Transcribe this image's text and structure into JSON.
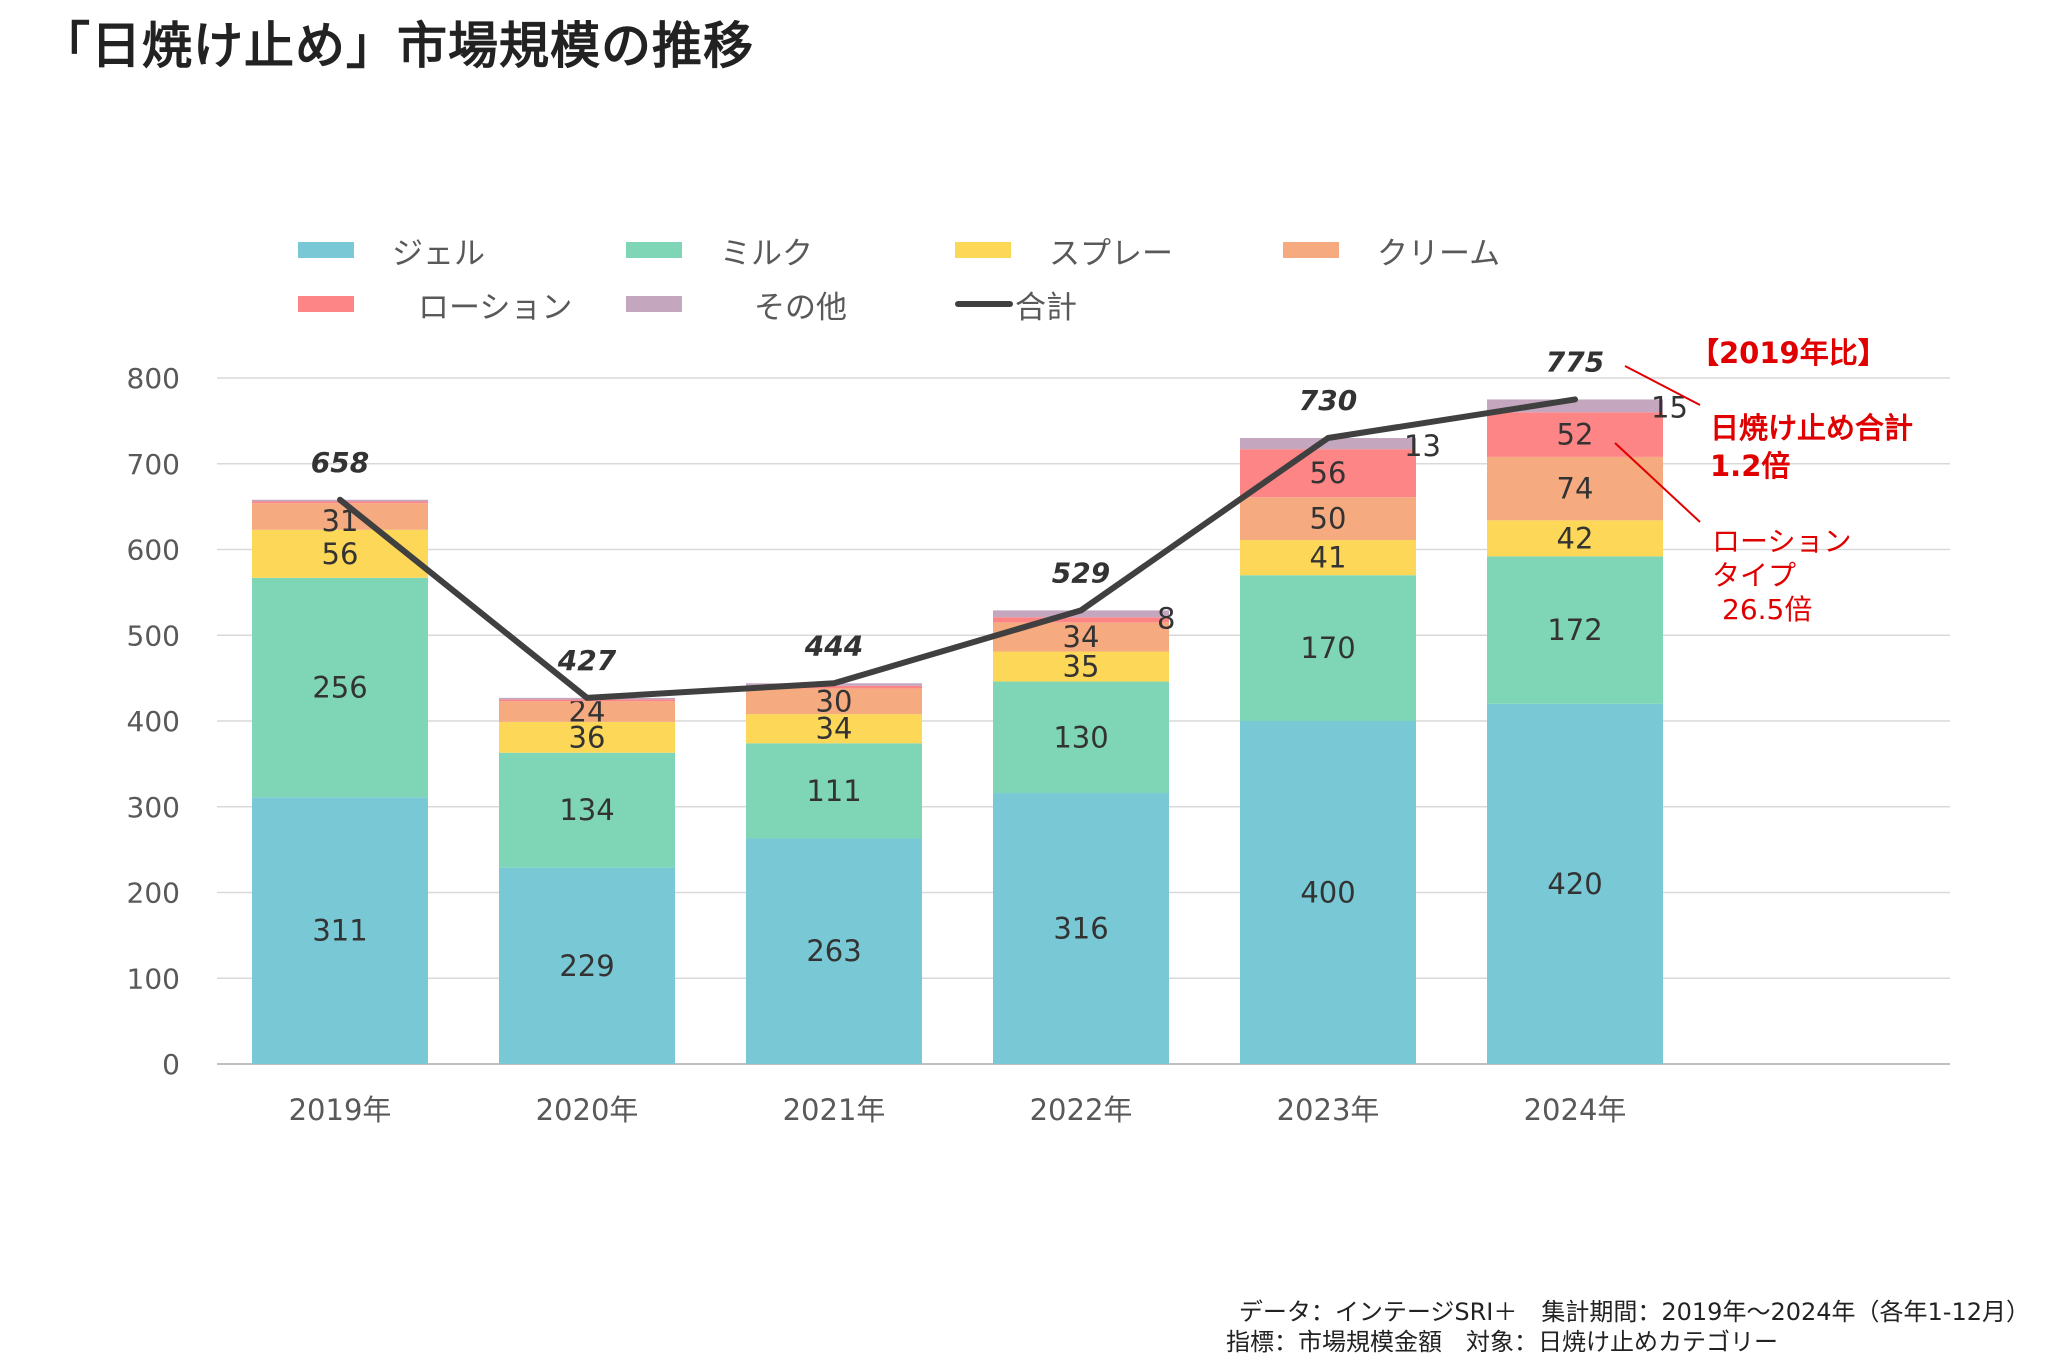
{
  "title": "「日焼け止め」市場規模の推移",
  "chart_data": {
    "type": "bar",
    "stacked": true,
    "categories": [
      "2019年",
      "2020年",
      "2021年",
      "2022年",
      "2023年",
      "2024年"
    ],
    "series": [
      {
        "name": "ジェル",
        "color": "#78c8d5",
        "values": [
          311,
          229,
          263,
          316,
          400,
          420
        ]
      },
      {
        "name": "ミルク",
        "color": "#7fd6b7",
        "values": [
          256,
          134,
          111,
          130,
          170,
          172
        ]
      },
      {
        "name": "スプレー",
        "color": "#fcd758",
        "values": [
          56,
          36,
          34,
          35,
          41,
          42
        ]
      },
      {
        "name": "クリーム",
        "color": "#f5aa80",
        "values": [
          31,
          24,
          30,
          34,
          50,
          74
        ]
      },
      {
        "name": "ローション",
        "color": "#fe8585",
        "values": [
          null,
          null,
          null,
          null,
          56,
          52
        ]
      },
      {
        "name": "その他",
        "color": "#c4a7bf",
        "values": [
          null,
          null,
          null,
          8,
          13,
          15
        ]
      }
    ],
    "stack_values": [
      [
        311,
        256,
        56,
        31,
        2,
        2
      ],
      [
        229,
        134,
        36,
        24,
        2,
        2
      ],
      [
        263,
        111,
        34,
        30,
        3,
        3
      ],
      [
        316,
        130,
        35,
        34,
        6,
        8
      ],
      [
        400,
        170,
        41,
        50,
        56,
        13
      ],
      [
        420,
        172,
        42,
        74,
        52,
        15
      ]
    ],
    "total": {
      "name": "合計",
      "color": "#404040",
      "values": [
        658,
        427,
        444,
        529,
        730,
        775
      ]
    },
    "yticks": [
      "0",
      "100",
      "200",
      "300",
      "400",
      "500",
      "600",
      "700",
      "800"
    ],
    "ylim": [
      0,
      800
    ],
    "grid": true,
    "legend_position": "top"
  },
  "annotations": {
    "header": "【2019年比】",
    "total_ratio_label": "日焼け止め合計",
    "total_ratio_value": "1.2倍",
    "lotion_line1": "ローション",
    "lotion_line2": "タイプ",
    "lotion_line3": "26.5倍"
  },
  "source": {
    "line1": "データ：インテージSRI＋　集計期間：2019年～2024年（各年1-12月）",
    "line2": "指標：市場規模金額　対象：日焼け止めカテゴリー"
  }
}
